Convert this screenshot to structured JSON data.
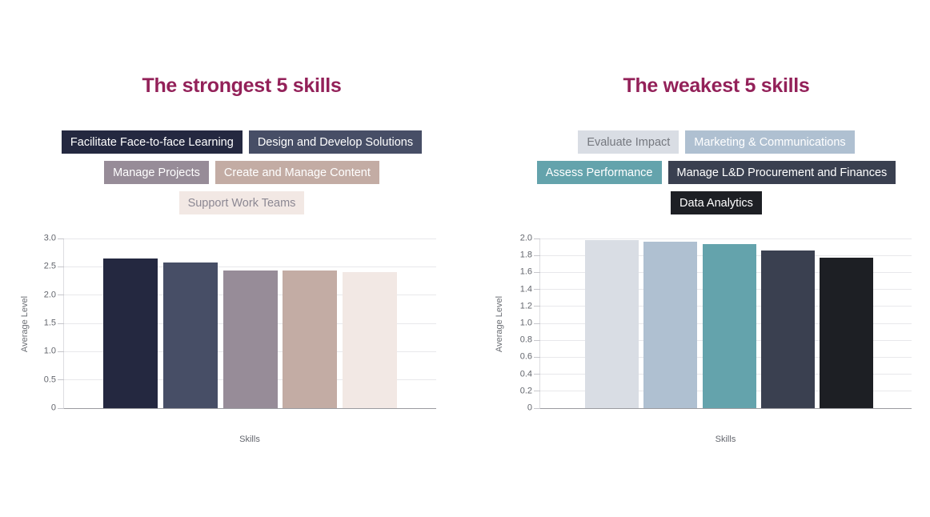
{
  "chart_data": [
    {
      "type": "bar",
      "title": "The strongest 5 skills",
      "categories": [
        "Facilitate Face-to-face Learning",
        "Design and Develop Solutions",
        "Manage Projects",
        "Create and Manage Content",
        "Support Work Teams"
      ],
      "values": [
        2.65,
        2.57,
        2.44,
        2.43,
        2.41
      ],
      "bar_colors": [
        "#242840",
        "#474E66",
        "#978C98",
        "#C3ACA4",
        "#F2E8E4"
      ],
      "xlabel": "Skills",
      "ylabel": "Average Level",
      "ylim": [
        0,
        3.0
      ],
      "ytick_step": 0.5,
      "ytick_labels": [
        "0",
        "0.5",
        "1.0",
        "1.5",
        "2.0",
        "2.5",
        "3.0"
      ],
      "grid": true,
      "legend_position": "top"
    },
    {
      "type": "bar",
      "title": "The weakest 5 skills",
      "categories": [
        "Evaluate Impact",
        "Marketing & Communications",
        "Assess Performance",
        "Manage L&D Procurement and Finances",
        "Data Analytics"
      ],
      "values": [
        1.98,
        1.96,
        1.93,
        1.86,
        1.77
      ],
      "bar_colors": [
        "#D9DDE4",
        "#AFC0D1",
        "#64A3AC",
        "#3A4050",
        "#1D1F24"
      ],
      "xlabel": "Skills",
      "ylabel": "Average Level",
      "ylim": [
        0,
        2.0
      ],
      "ytick_step": 0.2,
      "ytick_labels": [
        "0",
        "0.2",
        "0.4",
        "0.6",
        "0.8",
        "1.0",
        "1.2",
        "1.4",
        "1.6",
        "1.8",
        "2.0"
      ],
      "grid": true,
      "legend_position": "top"
    }
  ],
  "panels": [
    {
      "legend_rows": [
        {
          "chips": [
            {
              "label": "Facilitate Face-to-face Learning",
              "bg": "#242840",
              "fg": "#FFFFFF"
            },
            {
              "label": "Design and Develop Solutions",
              "bg": "#474E66",
              "fg": "#FFFFFF"
            }
          ]
        },
        {
          "chips": [
            {
              "label": "Manage Projects",
              "bg": "#978C98",
              "fg": "#FFFFFF"
            },
            {
              "label": "Create and Manage Content",
              "bg": "#C3ACA4",
              "fg": "#FFFFFF"
            }
          ]
        },
        {
          "chips": [
            {
              "label": "Support Work Teams",
              "bg": "#F2E8E4",
              "fg": "#8C8893"
            }
          ]
        }
      ]
    },
    {
      "legend_rows": [
        {
          "chips": [
            {
              "label": "Evaluate Impact",
              "bg": "#D9DDE4",
              "fg": "#75787F"
            },
            {
              "label": "Marketing & Communications",
              "bg": "#AFC0D1",
              "fg": "#FFFFFF"
            }
          ]
        },
        {
          "chips": [
            {
              "label": "Assess Performance",
              "bg": "#64A3AC",
              "fg": "#FFFFFF"
            },
            {
              "label": "Manage L&D Procurement and Finances",
              "bg": "#3A4050",
              "fg": "#FFFFFF"
            }
          ]
        },
        {
          "chips": [
            {
              "label": "Data Analytics",
              "bg": "#1D1F24",
              "fg": "#FFFFFF"
            }
          ]
        }
      ]
    }
  ],
  "colors": {
    "title": "#932159",
    "gridline": "#E8E8EB",
    "baseline": "#9B9BA0",
    "tick_text": "#63666D"
  }
}
